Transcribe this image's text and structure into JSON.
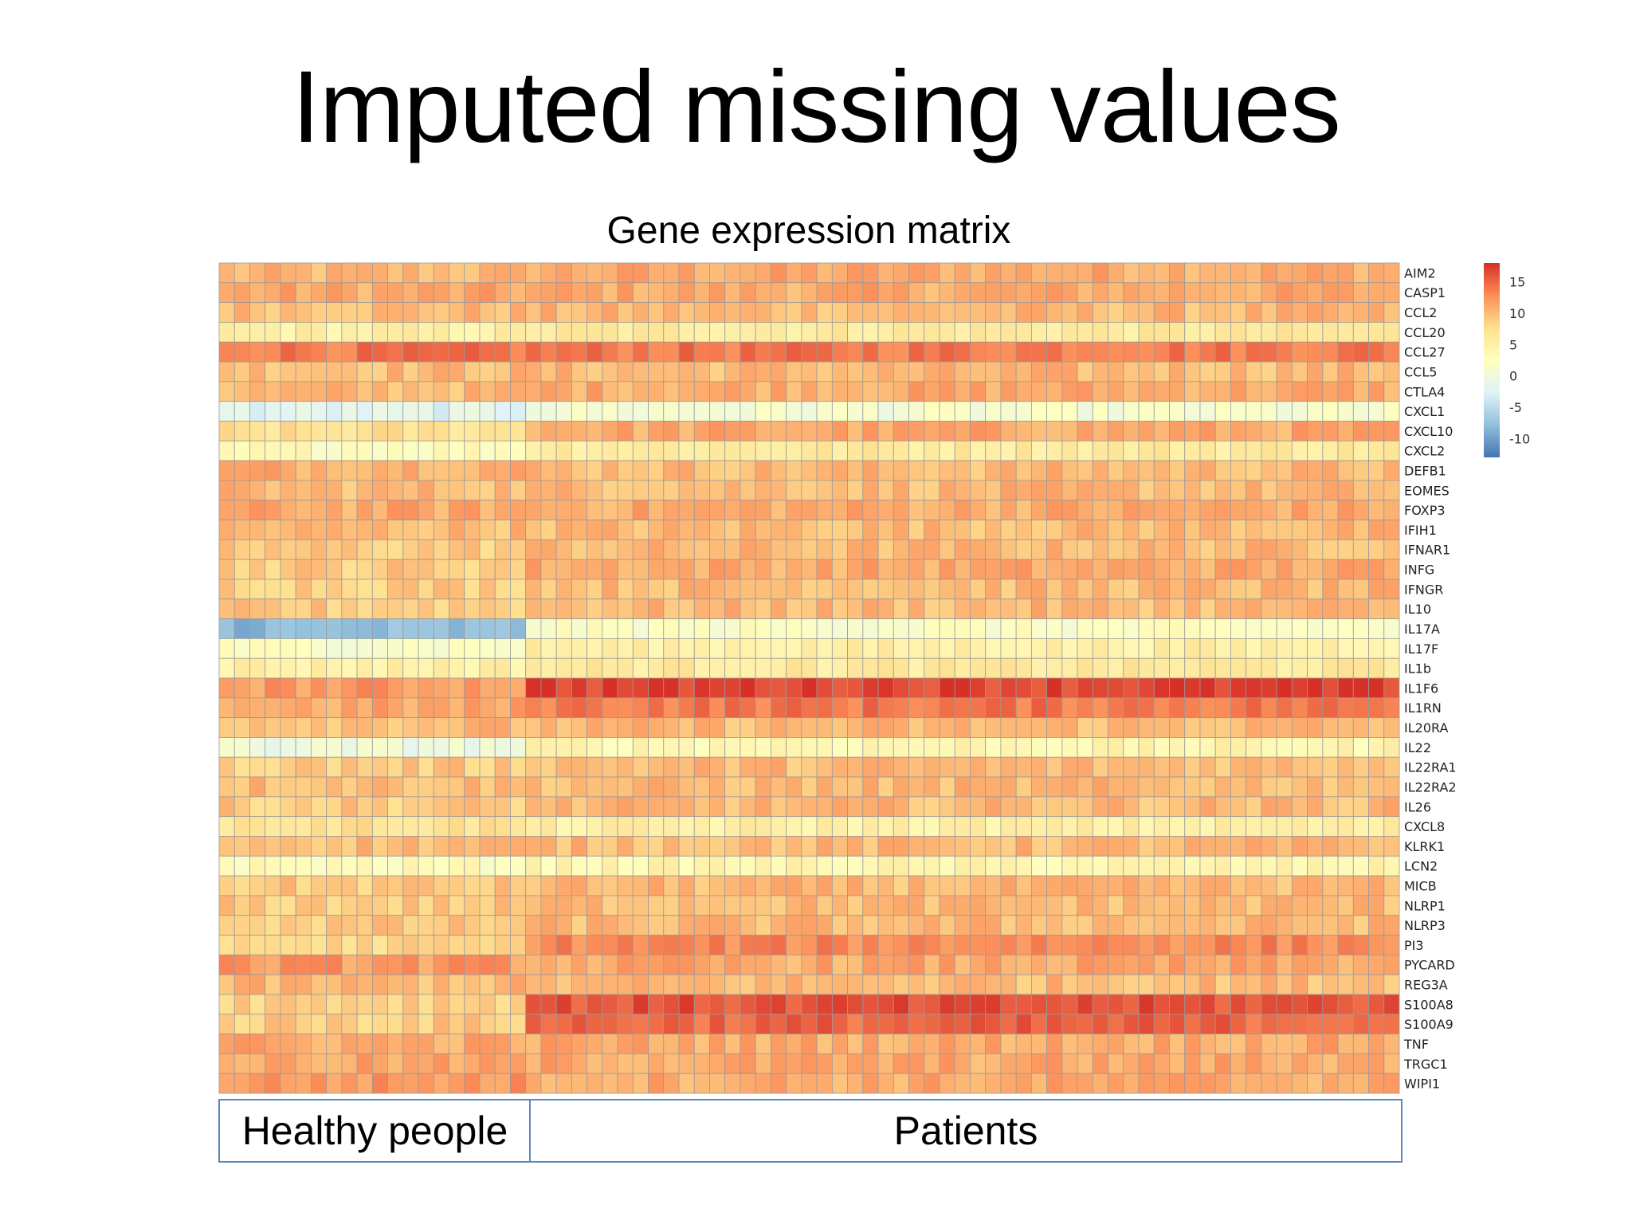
{
  "slide": {
    "title": "Imputed missing values"
  },
  "chart_data": {
    "type": "heatmap",
    "title": "Gene expression matrix",
    "rows": [
      "AIM2",
      "CASP1",
      "CCL2",
      "CCL20",
      "CCL27",
      "CCL5",
      "CTLA4",
      "CXCL1",
      "CXCL10",
      "CXCL2",
      "DEFB1",
      "EOMES",
      "FOXP3",
      "IFIH1",
      "IFNAR1",
      "INFG",
      "IFNGR",
      "IL10",
      "IL17A",
      "IL17F",
      "IL1b",
      "IL1F6",
      "IL1RN",
      "IL20RA",
      "IL22",
      "IL22RA1",
      "IL22RA2",
      "IL26",
      "CXCL8",
      "KLRK1",
      "LCN2",
      "MICB",
      "NLRP1",
      "NLRP3",
      "PI3",
      "PYCARD",
      "REG3A",
      "S100A8",
      "S100A9",
      "TNF",
      "TRGC1",
      "WIPI1"
    ],
    "n_columns": 77,
    "groups": [
      {
        "label": "Healthy people",
        "columns": 20
      },
      {
        "label": "Patients",
        "columns": 57
      }
    ],
    "row_mean_values": {
      "healthy": [
        10,
        11,
        10,
        5,
        14,
        10,
        10,
        -2,
        7,
        3,
        11,
        10,
        11,
        10,
        9,
        9,
        9,
        9,
        -8,
        2,
        5,
        12,
        11,
        10,
        0,
        9,
        10,
        9,
        7,
        10,
        3,
        9,
        9,
        9,
        8,
        12,
        10,
        9,
        9,
        11,
        11,
        12
      ],
      "patients": [
        11,
        11,
        10,
        6,
        14,
        10,
        11,
        1,
        11,
        6,
        10,
        10,
        11,
        10,
        10,
        11,
        10,
        10,
        2,
        5,
        6,
        17,
        14,
        10,
        4,
        10,
        10,
        10,
        5,
        10,
        4,
        10,
        10,
        10,
        13,
        11,
        10,
        16,
        15,
        11,
        11,
        11
      ]
    },
    "legend": {
      "ticks": [
        15,
        10,
        5,
        0,
        -5,
        -10
      ],
      "range": [
        -13,
        18
      ],
      "colors": [
        "#4575b4",
        "#91bfdb",
        "#e0f3f8",
        "#ffffbf",
        "#fee090",
        "#fc8d59",
        "#d73027"
      ]
    }
  }
}
